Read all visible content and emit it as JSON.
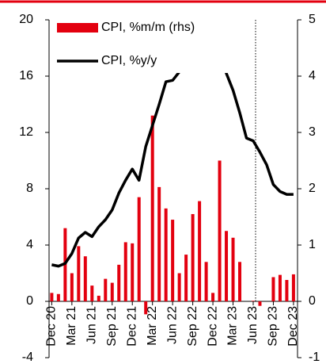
{
  "chart_data": {
    "type": "bar_line",
    "categories": [
      "Dec 20",
      null,
      null,
      "Mar 21",
      null,
      null,
      "Jun 21",
      null,
      null,
      "Sep 21",
      null,
      null,
      "Dec 21",
      null,
      null,
      "Mar 22",
      null,
      null,
      "Jun 22",
      null,
      null,
      "Sep 22",
      null,
      null,
      "Dec 22",
      null,
      null,
      "Mar 23",
      null,
      null,
      "Jun 23",
      null,
      null,
      "Sep 23",
      null,
      null,
      "Dec 23"
    ],
    "series": [
      {
        "name": "CPI, %m/m (rhs)",
        "type": "bar",
        "axis": "y2",
        "color": "#e3000f",
        "values": [
          0.15,
          0.13,
          1.3,
          0.5,
          0.98,
          0.8,
          0.28,
          0.1,
          0.4,
          0.33,
          0.65,
          1.05,
          1.03,
          1.85,
          -0.23,
          3.3,
          2.03,
          1.65,
          1.45,
          0.5,
          0.83,
          1.55,
          1.78,
          0.7,
          0.15,
          2.5,
          1.25,
          1.13,
          0.7,
          null,
          0.01,
          -0.08,
          null,
          0.43,
          0.47,
          0.38,
          0.48
        ]
      },
      {
        "name": "CPI, %y/y",
        "type": "line",
        "color": "#000000",
        "values": [
          2.6,
          2.5,
          2.7,
          3.4,
          4.5,
          4.9,
          4.6,
          5.3,
          5.8,
          6.5,
          7.7,
          8.6,
          9.4,
          8.6,
          11.0,
          12.5,
          14.0,
          15.6,
          15.7,
          16.3,
          17.3,
          17.9,
          17.5,
          16.6,
          16.6,
          18.4,
          16.2,
          15.0,
          13.4,
          11.6,
          11.4,
          10.6,
          9.7,
          8.3,
          7.8,
          7.6,
          7.6
        ]
      }
    ],
    "ylim": [
      -4,
      20
    ],
    "yticks": [
      -4,
      0,
      4,
      8,
      12,
      16,
      20
    ],
    "y2lim": [
      -1,
      5
    ],
    "y2ticks": [
      -1,
      0,
      1,
      2,
      3,
      4,
      5
    ],
    "legend": "upper left"
  }
}
